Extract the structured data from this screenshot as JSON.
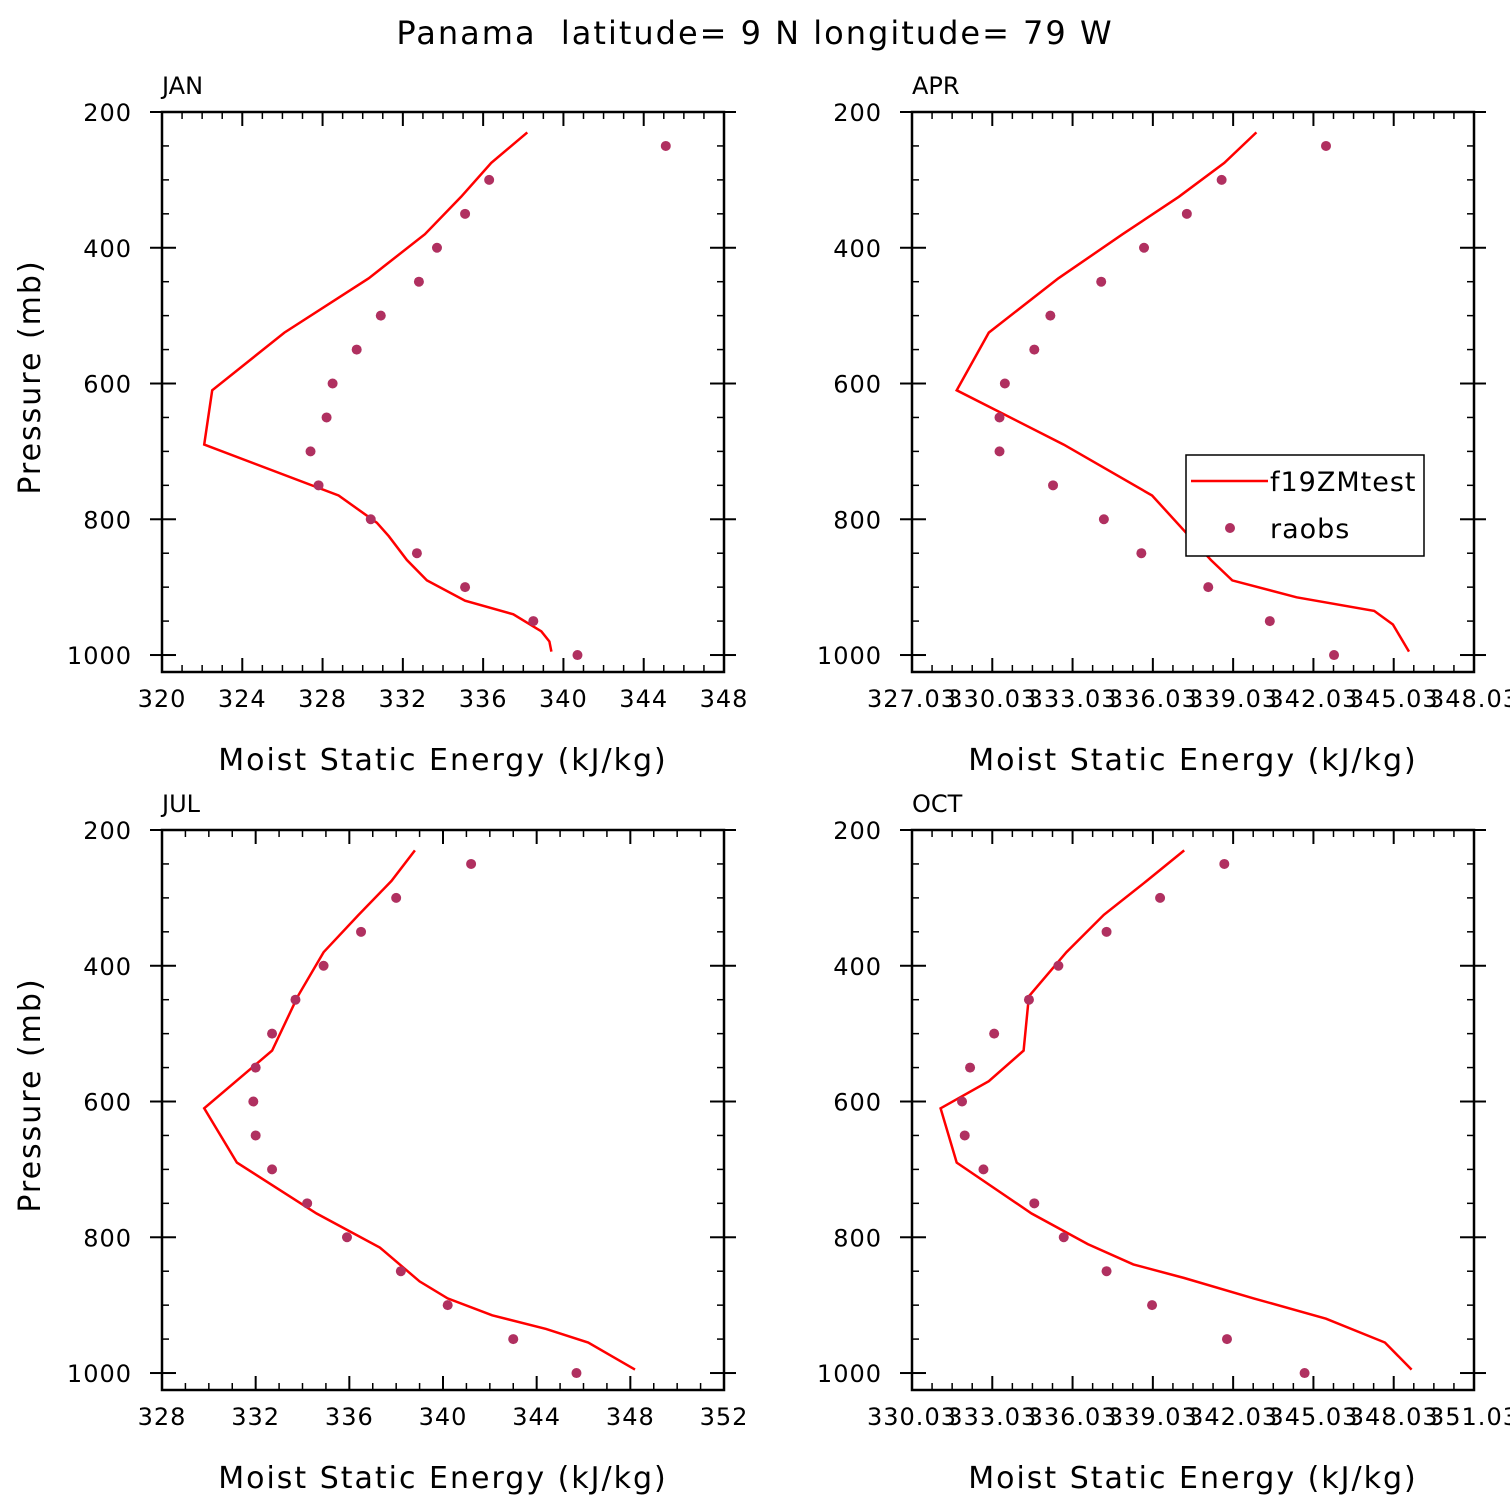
{
  "title": "Panama  latitude= 9 N longitude= 79 W",
  "colors": {
    "model": "#ff0000",
    "obs": "#b03060",
    "axis": "#000000"
  },
  "legend": {
    "model_label": "f19ZMtest",
    "obs_label": "raobs",
    "placement": "right-middle of APR panel"
  },
  "chart_data": [
    {
      "type": "line+scatter",
      "title": "JAN",
      "xlabel": "Moist Static Energy (kJ/kg)",
      "ylabel": "Pressure (mb)",
      "xlim": [
        320,
        348
      ],
      "ylim": [
        1000,
        200
      ],
      "xticks": [
        "320",
        "324",
        "328",
        "332",
        "336",
        "340",
        "344",
        "348"
      ],
      "yticks": [
        "200",
        "400",
        "600",
        "800",
        "1000"
      ],
      "model": {
        "name": "f19ZMtest",
        "x": [
          338.2,
          336.4,
          334.9,
          333.1,
          330.3,
          326.1,
          322.5,
          322.1,
          328.8,
          330.7,
          331.3,
          332.2,
          333.2,
          335.1,
          337.5,
          338.9,
          339.3,
          339.4
        ],
        "y": [
          230,
          275,
          325,
          380,
          445,
          525,
          610,
          690,
          765,
          805,
          825,
          860,
          890,
          920,
          940,
          965,
          980,
          995
        ]
      },
      "obs": {
        "name": "raobs",
        "x": [
          345.1,
          336.3,
          335.1,
          333.7,
          332.8,
          330.9,
          329.7,
          328.5,
          328.2,
          327.4,
          327.8,
          330.4,
          332.7,
          335.1,
          338.5,
          340.7
        ],
        "y": [
          250,
          300,
          350,
          400,
          450,
          500,
          550,
          600,
          650,
          700,
          750,
          800,
          850,
          900,
          950,
          1000
        ]
      }
    },
    {
      "type": "line+scatter",
      "title": "APR",
      "xlabel": "Moist Static Energy (kJ/kg)",
      "ylabel": "",
      "xlim": [
        327.03,
        348.03
      ],
      "ylim": [
        1000,
        200
      ],
      "xticks": [
        "327.03",
        "330.03",
        "333.03",
        "336.03",
        "339.03",
        "342.03",
        "345.03",
        "348.03"
      ],
      "yticks": [
        "200",
        "400",
        "600",
        "800",
        "1000"
      ],
      "model": {
        "name": "f19ZMtest",
        "x": [
          339.9,
          338.7,
          337.0,
          334.9,
          332.5,
          329.9,
          328.7,
          332.7,
          336.0,
          338.2,
          339.0,
          341.4,
          344.3,
          345.0,
          345.6
        ],
        "y": [
          230,
          275,
          325,
          380,
          445,
          525,
          610,
          690,
          765,
          860,
          890,
          915,
          935,
          955,
          995
        ]
      },
      "obs": {
        "name": "raobs",
        "x": [
          342.5,
          338.6,
          337.3,
          335.7,
          334.1,
          332.2,
          331.6,
          330.5,
          330.3,
          330.3,
          332.3,
          334.2,
          335.6,
          338.1,
          340.4,
          342.8
        ],
        "y": [
          250,
          300,
          350,
          400,
          450,
          500,
          550,
          600,
          650,
          700,
          750,
          800,
          850,
          900,
          950,
          1000
        ]
      }
    },
    {
      "type": "line+scatter",
      "title": "JUL",
      "xlabel": "Moist Static Energy (kJ/kg)",
      "ylabel": "Pressure (mb)",
      "xlim": [
        328,
        352
      ],
      "ylim": [
        1000,
        200
      ],
      "xticks": [
        "328",
        "332",
        "336",
        "340",
        "344",
        "348",
        "352"
      ],
      "yticks": [
        "200",
        "400",
        "600",
        "800",
        "1000"
      ],
      "model": {
        "name": "f19ZMtest",
        "x": [
          338.8,
          337.8,
          336.4,
          334.9,
          333.8,
          332.7,
          329.8,
          331.2,
          334.6,
          337.3,
          339.0,
          340.2,
          342.1,
          344.4,
          346.2,
          347.2,
          348.2
        ],
        "y": [
          230,
          275,
          325,
          380,
          445,
          525,
          610,
          690,
          765,
          815,
          865,
          890,
          915,
          935,
          955,
          975,
          995
        ]
      },
      "obs": {
        "name": "raobs",
        "x": [
          341.2,
          338.0,
          336.5,
          334.9,
          333.7,
          332.7,
          332.0,
          331.9,
          332.0,
          332.7,
          334.2,
          335.9,
          338.2,
          340.2,
          343.0,
          345.7
        ],
        "y": [
          250,
          300,
          350,
          400,
          450,
          500,
          550,
          600,
          650,
          700,
          750,
          800,
          850,
          900,
          950,
          1000
        ]
      }
    },
    {
      "type": "line+scatter",
      "title": "OCT",
      "xlabel": "Moist Static Energy (kJ/kg)",
      "ylabel": "",
      "xlim": [
        330.03,
        351.03
      ],
      "ylim": [
        1000,
        200
      ],
      "xticks": [
        "330.03",
        "333.03",
        "336.03",
        "339.03",
        "342.03",
        "345.03",
        "348.03",
        "351.03"
      ],
      "yticks": [
        "200",
        "400",
        "600",
        "800",
        "1000"
      ],
      "model": {
        "name": "f19ZMtest",
        "x": [
          340.2,
          338.8,
          337.2,
          335.8,
          334.4,
          334.2,
          332.9,
          331.1,
          331.7,
          334.5,
          336.6,
          338.3,
          340.2,
          342.8,
          345.5,
          347.7,
          348.7
        ],
        "y": [
          230,
          275,
          325,
          380,
          445,
          525,
          570,
          610,
          690,
          765,
          810,
          840,
          860,
          890,
          920,
          955,
          995
        ]
      },
      "obs": {
        "name": "raobs",
        "x": [
          341.7,
          339.3,
          337.3,
          335.5,
          334.4,
          333.1,
          332.2,
          331.9,
          332.0,
          332.7,
          334.6,
          335.7,
          337.3,
          339.0,
          341.8,
          344.7
        ],
        "y": [
          250,
          300,
          350,
          400,
          450,
          500,
          550,
          600,
          650,
          700,
          750,
          800,
          850,
          900,
          950,
          1000
        ]
      }
    }
  ]
}
